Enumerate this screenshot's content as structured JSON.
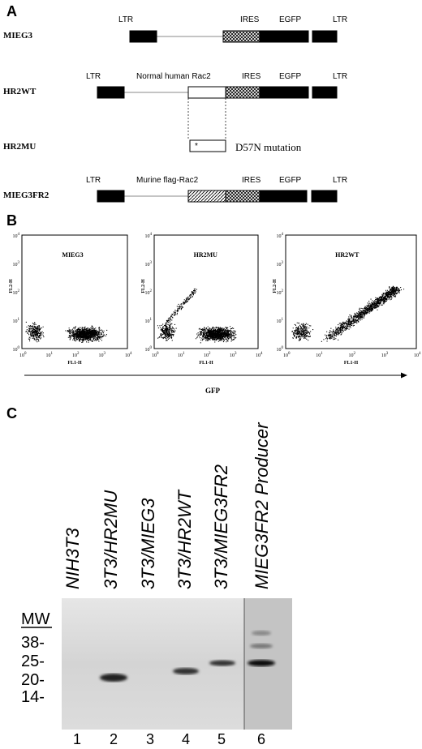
{
  "panel_a": {
    "label": "A",
    "constructs": [
      {
        "name": "MIEG3",
        "labels": [
          "LTR",
          "IRES",
          "EGFP",
          "LTR"
        ]
      },
      {
        "name": "HR2WT",
        "labels": [
          "LTR",
          "Normal human Rac2",
          "IRES",
          "EGFP",
          "LTR"
        ]
      },
      {
        "name": "HR2MU",
        "labels": [
          "*",
          "D57N mutation"
        ]
      },
      {
        "name": "MIEG3FR2",
        "labels": [
          "LTR",
          "Murine flag-Rac2",
          "IRES",
          "EGFP",
          "LTR"
        ]
      }
    ]
  },
  "panel_b": {
    "label": "B",
    "plots": [
      {
        "title": "MIEG3"
      },
      {
        "title": "HR2MU"
      },
      {
        "title": "HR2WT"
      }
    ],
    "y_axis_label": "FL2-H",
    "x_axis_label": "FL1-H",
    "tick_base": "10",
    "tick_exponents": [
      "0",
      "1",
      "2",
      "3",
      "4"
    ],
    "arrow_label": "GFP"
  },
  "panel_c": {
    "label": "C",
    "lanes": [
      "NIH3T3",
      "3T3/HR2MU",
      "3T3/MIEG3",
      "3T3/HR2WT",
      "3T3/MIEG3FR2",
      "MIEG3FR2 Producer"
    ],
    "mw_label": "MW",
    "mw_markers": [
      "38-",
      "25-",
      "20-",
      "14-"
    ],
    "lane_numbers": [
      "1",
      "2",
      "3",
      "4",
      "5",
      "6"
    ]
  }
}
